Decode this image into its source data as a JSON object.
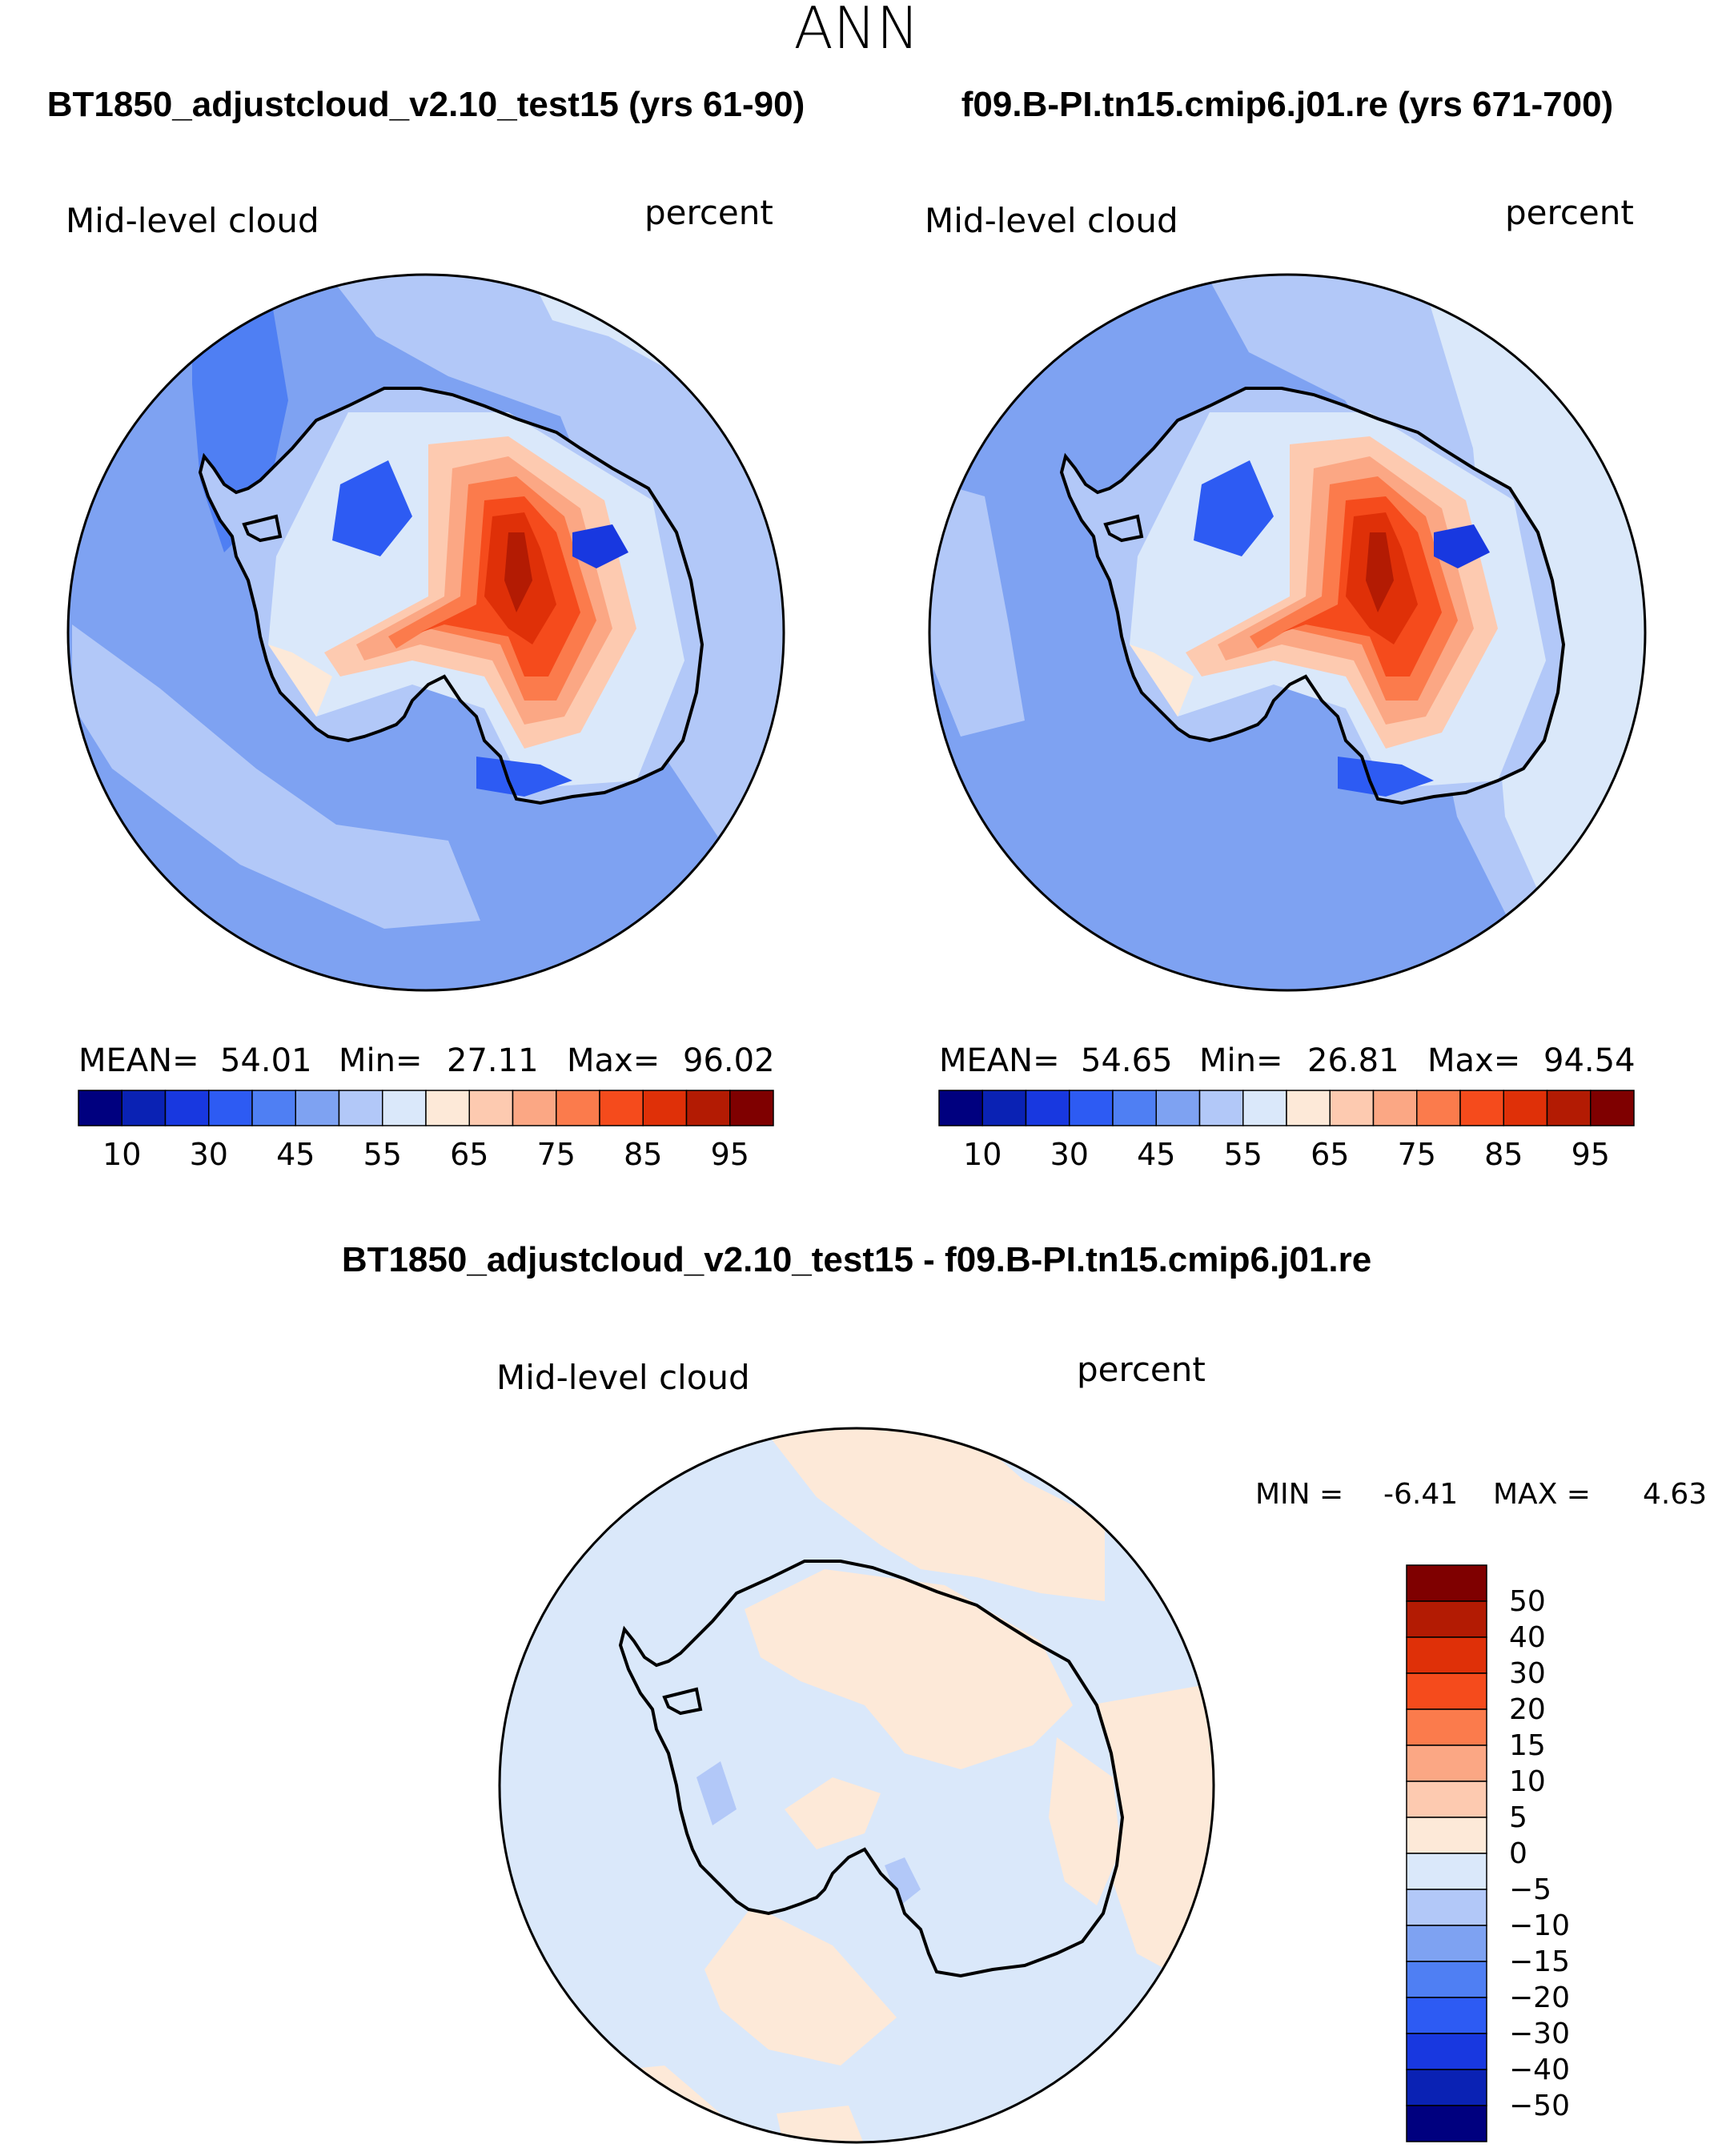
{
  "title": "ANN",
  "panels": [
    {
      "id": "test",
      "case_title": "BT1850_adjustcloud_v2.10_test15 (yrs 61-90)",
      "variable": "Mid-level cloud",
      "units": "percent",
      "stats": {
        "mean_label": "MEAN=",
        "mean": "54.01",
        "min_label": "Min=",
        "min": "27.11",
        "max_label": "Max=",
        "max": "96.02"
      }
    },
    {
      "id": "control",
      "case_title": "f09.B-PI.tn15.cmip6.j01.re (yrs 671-700)",
      "variable": "Mid-level cloud",
      "units": "percent",
      "stats": {
        "mean_label": "MEAN=",
        "mean": "54.65",
        "min_label": "Min=",
        "min": "26.81",
        "max_label": "Max=",
        "max": "94.54"
      }
    }
  ],
  "colorbar_abs": {
    "colors": [
      "#00007f",
      "#0a22b4",
      "#1838e0",
      "#2d5bf3",
      "#4f7ff3",
      "#7ea2f2",
      "#b2c8f8",
      "#dae8fa",
      "#fde9d8",
      "#fdcab0",
      "#fba784",
      "#fb7b4c",
      "#f54b1c",
      "#df3008",
      "#b31b03",
      "#7f0000"
    ],
    "labels": [
      "10",
      "30",
      "45",
      "55",
      "65",
      "75",
      "85",
      "95"
    ]
  },
  "diff": {
    "title": "BT1850_adjustcloud_v2.10_test15 - f09.B-PI.tn15.cmip6.j01.re",
    "variable": "Mid-level cloud",
    "units": "percent",
    "minmax": {
      "min_label": "MIN =",
      "min": "-6.41",
      "max_label": "MAX =",
      "max": "4.63"
    }
  },
  "colorbar_diff": {
    "colors": [
      "#7f0000",
      "#b31b03",
      "#df3008",
      "#f54b1c",
      "#fb7b4c",
      "#fba784",
      "#fdcab0",
      "#fde9d8",
      "#dae8fa",
      "#b2c8f8",
      "#7ea2f2",
      "#4f7ff3",
      "#2d5bf3",
      "#1838e0",
      "#0a22b4",
      "#00007f"
    ],
    "labels": [
      "50",
      "40",
      "30",
      "20",
      "15",
      "10",
      "5",
      "0",
      "−5",
      "−10",
      "−15",
      "−20",
      "−30",
      "−40",
      "−50"
    ]
  },
  "colors": {
    "coast": "#000000",
    "ocean_mid": "#7ea2f2",
    "ocean_light": "#b2c8f8",
    "diff_blue": "#dae8fa",
    "diff_peach": "#fde9d8"
  }
}
